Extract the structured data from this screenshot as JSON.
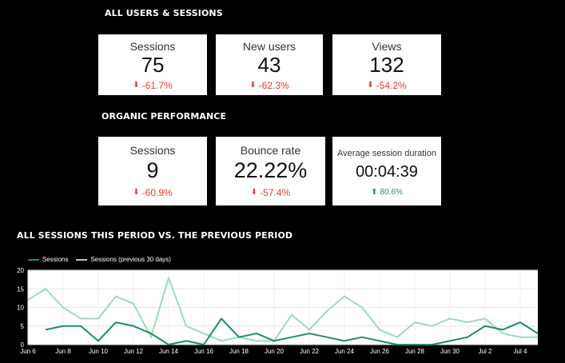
{
  "section1": {
    "title": "ALL USERS & SESSIONS"
  },
  "section2": {
    "title": "ORGANIC PERFORMANCE"
  },
  "section3": {
    "title": "ALL SESSIONS THIS PERIOD VS. THE PREVIOUS PERIOD"
  },
  "cards_all": [
    {
      "label": "Sessions",
      "value": "75",
      "delta": "-61.7%",
      "direction": "down"
    },
    {
      "label": "New users",
      "value": "43",
      "delta": "-62.3%",
      "direction": "down"
    },
    {
      "label": "Views",
      "value": "132",
      "delta": "-54.2%",
      "direction": "down"
    }
  ],
  "cards_organic": [
    {
      "label": "Sessions",
      "value": "9",
      "delta": "-60.9%",
      "direction": "down"
    },
    {
      "label": "Bounce rate",
      "value": "22.22%",
      "delta": "-57.4%",
      "direction": "down"
    },
    {
      "label": "Average session duration",
      "value": "00:04:39",
      "delta": "80.6%",
      "direction": "up"
    }
  ],
  "icons": {
    "down": "arrow-down-icon",
    "up": "arrow-up-icon"
  },
  "colors": {
    "negative": "#e53935",
    "positive": "#0f9d58",
    "series_current": "#1e8f5a",
    "series_previous": "#9fd9bd"
  },
  "chart_data": {
    "type": "line",
    "x": [
      "Jun 6",
      "Jun 7",
      "Jun 8",
      "Jun 9",
      "Jun 10",
      "Jun 11",
      "Jun 12",
      "Jun 13",
      "Jun 14",
      "Jun 15",
      "Jun 16",
      "Jun 17",
      "Jun 18",
      "Jun 19",
      "Jun 20",
      "Jun 21",
      "Jun 22",
      "Jun 23",
      "Jun 24",
      "Jun 25",
      "Jun 26",
      "Jun 27",
      "Jun 28",
      "Jun 29",
      "Jun 30",
      "Jul 1",
      "Jul 2",
      "Jul 3",
      "Jul 4",
      "Jul 5"
    ],
    "xticks": [
      "Jun 6",
      "Jun 8",
      "Jun 10",
      "Jun 12",
      "Jun 14",
      "Jun 16",
      "Jun 18",
      "Jun 20",
      "Jun 22",
      "Jun 24",
      "Jun 26",
      "Jun 28",
      "Jun 30",
      "Jul 2",
      "Jul 4"
    ],
    "series": [
      {
        "name": "Sessions",
        "values": [
          null,
          4,
          5,
          5,
          1,
          6,
          5,
          3,
          0,
          1,
          0,
          7,
          2,
          3,
          1,
          2,
          3,
          2,
          1,
          2,
          1,
          0,
          0,
          0,
          1,
          2,
          5,
          4,
          6,
          3
        ]
      },
      {
        "name": "Sessions (previous 30 days)",
        "values": [
          12,
          15,
          10,
          7,
          7,
          13,
          11,
          2,
          18,
          5,
          3,
          1,
          2,
          1,
          1,
          8,
          4,
          9,
          13,
          10,
          4,
          2,
          6,
          5,
          7,
          6,
          7,
          3,
          2,
          2
        ]
      }
    ],
    "yticks": [
      0,
      5,
      10,
      15,
      20
    ],
    "ylim": [
      0,
      20
    ],
    "grid": true,
    "legend": "top-left"
  }
}
